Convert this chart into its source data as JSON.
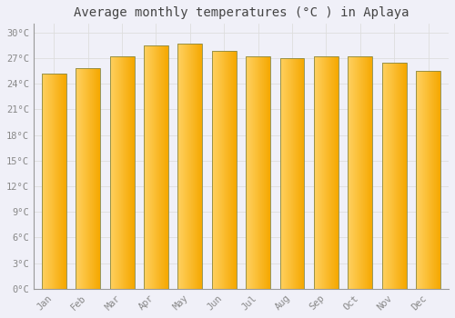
{
  "title": "Average monthly temperatures (°C ) in Aplaya",
  "months": [
    "Jan",
    "Feb",
    "Mar",
    "Apr",
    "May",
    "Jun",
    "Jul",
    "Aug",
    "Sep",
    "Oct",
    "Nov",
    "Dec"
  ],
  "temperatures": [
    25.2,
    25.8,
    27.2,
    28.5,
    28.7,
    27.8,
    27.2,
    27.0,
    27.2,
    27.2,
    26.5,
    25.5
  ],
  "bar_color_left": "#FFD060",
  "bar_color_right": "#F5A800",
  "bar_edge_color": "#888844",
  "background_color": "#f0f0f8",
  "plot_bg_color": "#f0f0f8",
  "grid_color": "#dddddd",
  "tick_label_color": "#888888",
  "title_color": "#444444",
  "ylim": [
    0,
    31
  ],
  "yticks": [
    0,
    3,
    6,
    9,
    12,
    15,
    18,
    21,
    24,
    27,
    30
  ],
  "ytick_labels": [
    "0°C",
    "3°C",
    "6°C",
    "9°C",
    "12°C",
    "15°C",
    "18°C",
    "21°C",
    "24°C",
    "27°C",
    "30°C"
  ],
  "title_fontsize": 10,
  "tick_fontsize": 7.5,
  "font_family": "monospace",
  "bar_width": 0.72,
  "figsize": [
    5.0,
    3.5
  ],
  "dpi": 100
}
